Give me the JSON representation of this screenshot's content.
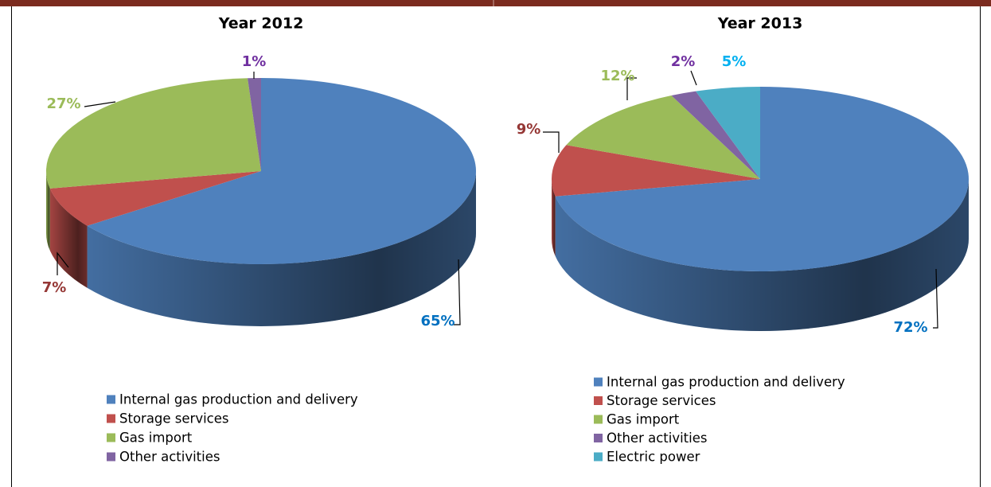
{
  "chart_data": [
    {
      "type": "pie",
      "title": "Year 2012",
      "categories": [
        "Internal gas production and delivery",
        "Storage services",
        "Gas import",
        "Other activities"
      ],
      "values": [
        65,
        7,
        27,
        1
      ],
      "value_labels": [
        "65%",
        "7%",
        "27%",
        "1%"
      ],
      "colors": [
        "#4f81bd",
        "#c0504d",
        "#9bbb59",
        "#8064a2"
      ],
      "value_label_colors": [
        "#0070c0",
        "#953735",
        "#9bbb59",
        "#7030a0"
      ]
    },
    {
      "type": "pie",
      "title": "Year 2013",
      "categories": [
        "Internal gas production and delivery",
        "Storage services",
        "Gas import",
        "Other activities",
        "Electric power"
      ],
      "values": [
        72,
        9,
        12,
        2,
        5
      ],
      "value_labels": [
        "72%",
        "9%",
        "12%",
        "2%",
        "5%"
      ],
      "colors": [
        "#4f81bd",
        "#c0504d",
        "#9bbb59",
        "#8064a2",
        "#4bacc6"
      ],
      "value_label_colors": [
        "#0070c0",
        "#953735",
        "#9bbb59",
        "#7030a0",
        "#00b0f0"
      ]
    }
  ]
}
